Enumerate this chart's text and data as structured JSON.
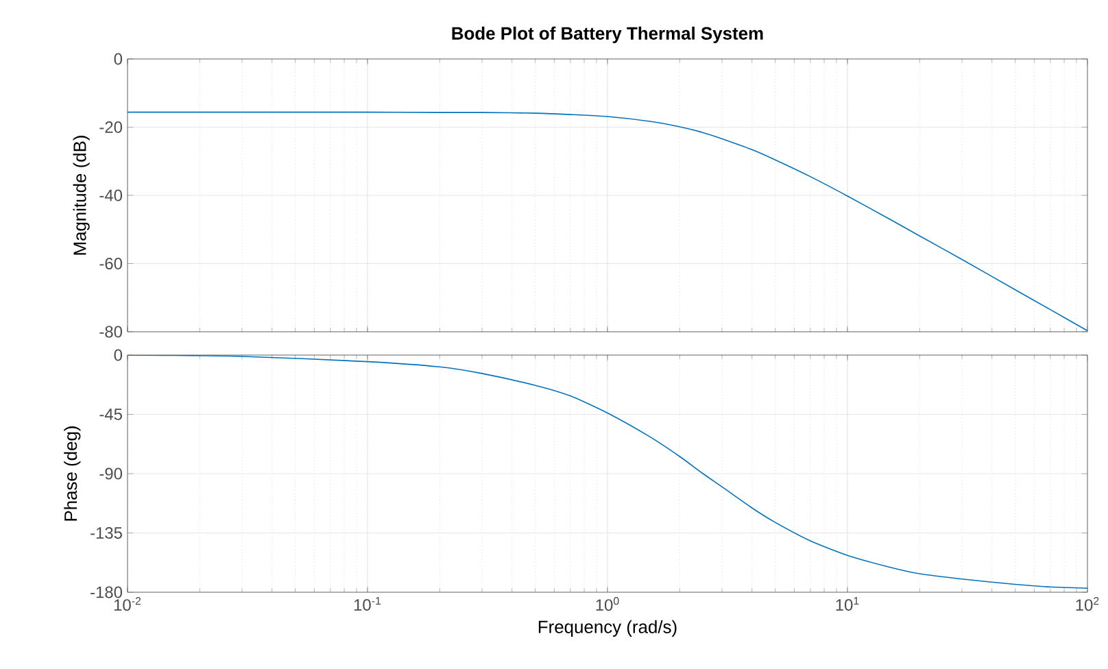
{
  "chart_data": [
    {
      "type": "line",
      "title": "Bode Plot of Battery Thermal System",
      "ylabel": "Magnitude (dB)",
      "log": "x",
      "grid": true,
      "tick_labels": "y",
      "xlim": [
        0.01,
        100
      ],
      "ylim": [
        -80,
        0
      ],
      "xticks": [
        {
          "value": 0.01,
          "label": null
        },
        {
          "value": 0.1,
          "label": null
        },
        {
          "value": 1,
          "label": null
        },
        {
          "value": 10,
          "label": null
        },
        {
          "value": 100,
          "label": null
        }
      ],
      "yticks": [
        -80,
        -60,
        -40,
        -20,
        0
      ],
      "x": [
        0.01,
        0.03,
        0.1,
        0.2,
        0.3,
        0.5,
        0.7,
        1,
        1.5,
        2,
        2.5,
        3,
        4,
        5,
        7,
        10,
        15,
        20,
        30,
        50,
        70,
        100
      ],
      "series": [
        {
          "color": "#0072bd",
          "values": [
            -15.6,
            -15.6,
            -15.6,
            -15.7,
            -15.7,
            -15.9,
            -16.3,
            -16.9,
            -18.3,
            -19.9,
            -21.6,
            -23.4,
            -26.6,
            -29.6,
            -34.5,
            -40.2,
            -47.0,
            -51.9,
            -58.8,
            -67.7,
            -73.5,
            -79.7
          ]
        }
      ]
    },
    {
      "type": "line",
      "xlabel": "Frequency  (rad/s)",
      "ylabel": "Phase (deg)",
      "log": "x",
      "grid": true,
      "xlim": [
        0.01,
        100
      ],
      "ylim": [
        -180,
        0
      ],
      "xticks": [
        {
          "value": 0.01,
          "label": "10$^{-2}$"
        },
        {
          "value": 0.1,
          "label": "10$^{-1}$"
        },
        {
          "value": 1,
          "label": "10$^{0}$"
        },
        {
          "value": 10,
          "label": "10$^{1}$"
        },
        {
          "value": 100,
          "label": "10$^{2}$"
        }
      ],
      "yticks": [
        -180,
        -135,
        -90,
        -45,
        0
      ],
      "x": [
        0.01,
        0.03,
        0.1,
        0.2,
        0.3,
        0.5,
        0.7,
        1,
        1.5,
        2,
        2.5,
        3,
        4,
        5,
        7,
        10,
        15,
        20,
        30,
        50,
        70,
        100
      ],
      "series": [
        {
          "color": "#0072bd",
          "values": [
            0,
            -1,
            -5,
            -9,
            -14,
            -23,
            -31,
            -44,
            -62,
            -77,
            -90,
            -100,
            -116,
            -127,
            -141,
            -152,
            -161,
            -166,
            -170,
            -174,
            -176,
            -177
          ]
        }
      ]
    }
  ]
}
